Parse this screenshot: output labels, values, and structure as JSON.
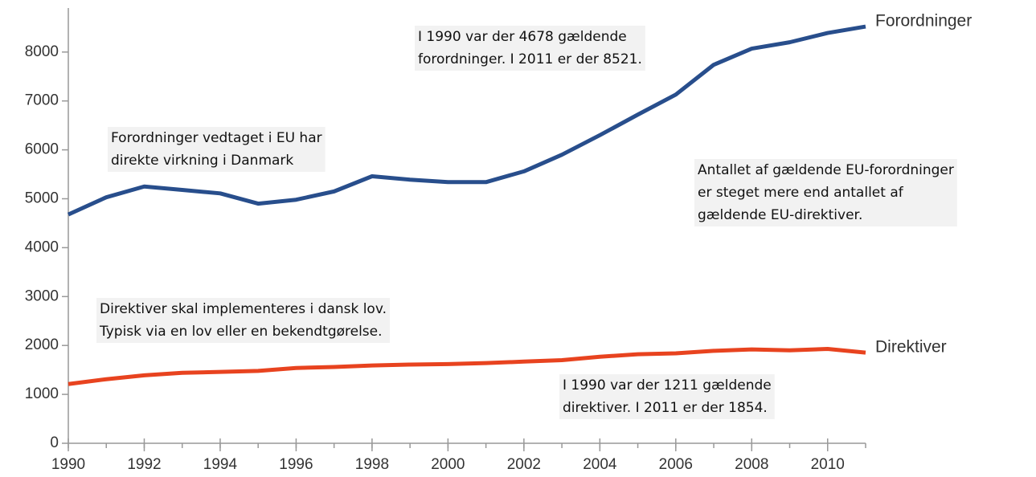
{
  "chart_data": {
    "type": "line",
    "x": [
      1990,
      1991,
      1992,
      1993,
      1994,
      1995,
      1996,
      1997,
      1998,
      1999,
      2000,
      2001,
      2002,
      2003,
      2004,
      2005,
      2006,
      2007,
      2008,
      2009,
      2010,
      2011
    ],
    "series": [
      {
        "name": "Forordninger",
        "color": "#284e8c",
        "values": [
          4678,
          5030,
          5250,
          5180,
          5110,
          4900,
          4980,
          5150,
          5460,
          5390,
          5340,
          5340,
          5560,
          5900,
          6300,
          6720,
          7130,
          7740,
          8070,
          8200,
          8390,
          8521
        ]
      },
      {
        "name": "Direktiver",
        "color": "#e8431f",
        "values": [
          1211,
          1310,
          1390,
          1440,
          1460,
          1480,
          1540,
          1560,
          1590,
          1610,
          1620,
          1640,
          1670,
          1700,
          1770,
          1820,
          1840,
          1890,
          1920,
          1900,
          1930,
          1854
        ]
      }
    ],
    "xlim": [
      1990,
      2011
    ],
    "xticks": [
      1990,
      1992,
      1994,
      1996,
      1998,
      2000,
      2002,
      2004,
      2006,
      2008,
      2010
    ],
    "ylim": [
      0,
      8900
    ],
    "yticks": [
      0,
      1000,
      2000,
      3000,
      4000,
      5000,
      6000,
      7000,
      8000
    ],
    "annotations": [
      [
        "I 1990 var der 4678 gældende",
        "forordninger. I 2011 er der 8521."
      ],
      [
        "Forordninger vedtaget i EU har",
        "direkte virkning i Danmark"
      ],
      [
        "Antallet af gældende EU-forordninger",
        "er steget mere end antallet af",
        "gældende EU-direktiver."
      ],
      [
        "Direktiver skal implementeres i dansk lov.",
        "Typisk via en lov eller en bekendtgørelse."
      ],
      [
        "I 1990 var der 1211 gældende",
        "direktiver. I 2011 er der 1854."
      ]
    ]
  }
}
